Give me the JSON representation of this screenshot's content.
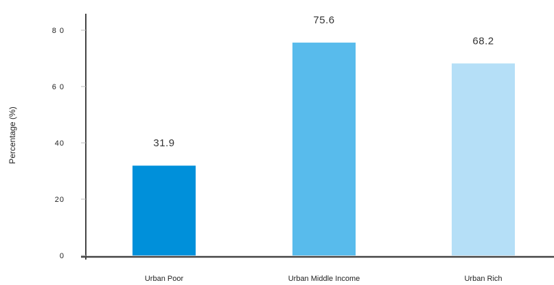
{
  "chart_data": {
    "type": "bar",
    "title": "",
    "xlabel": "",
    "ylabel": "Percentage (%)",
    "ylim": [
      0,
      85
    ],
    "yticks": [
      0,
      20,
      40,
      60,
      80
    ],
    "ytick_labels": [
      "0",
      "20",
      "40",
      "6 0",
      "8 0"
    ],
    "grid": false,
    "categories": [
      "Urban Poor",
      "Urban Middle Income",
      "Urban Rich"
    ],
    "values": [
      31.9,
      75.6,
      68.2
    ],
    "value_labels": [
      "31.9",
      "75.6",
      "68.2"
    ],
    "colors": [
      "#0090DA",
      "#58BBEC",
      "#B5DFF7"
    ],
    "axis_color": "#444444"
  }
}
